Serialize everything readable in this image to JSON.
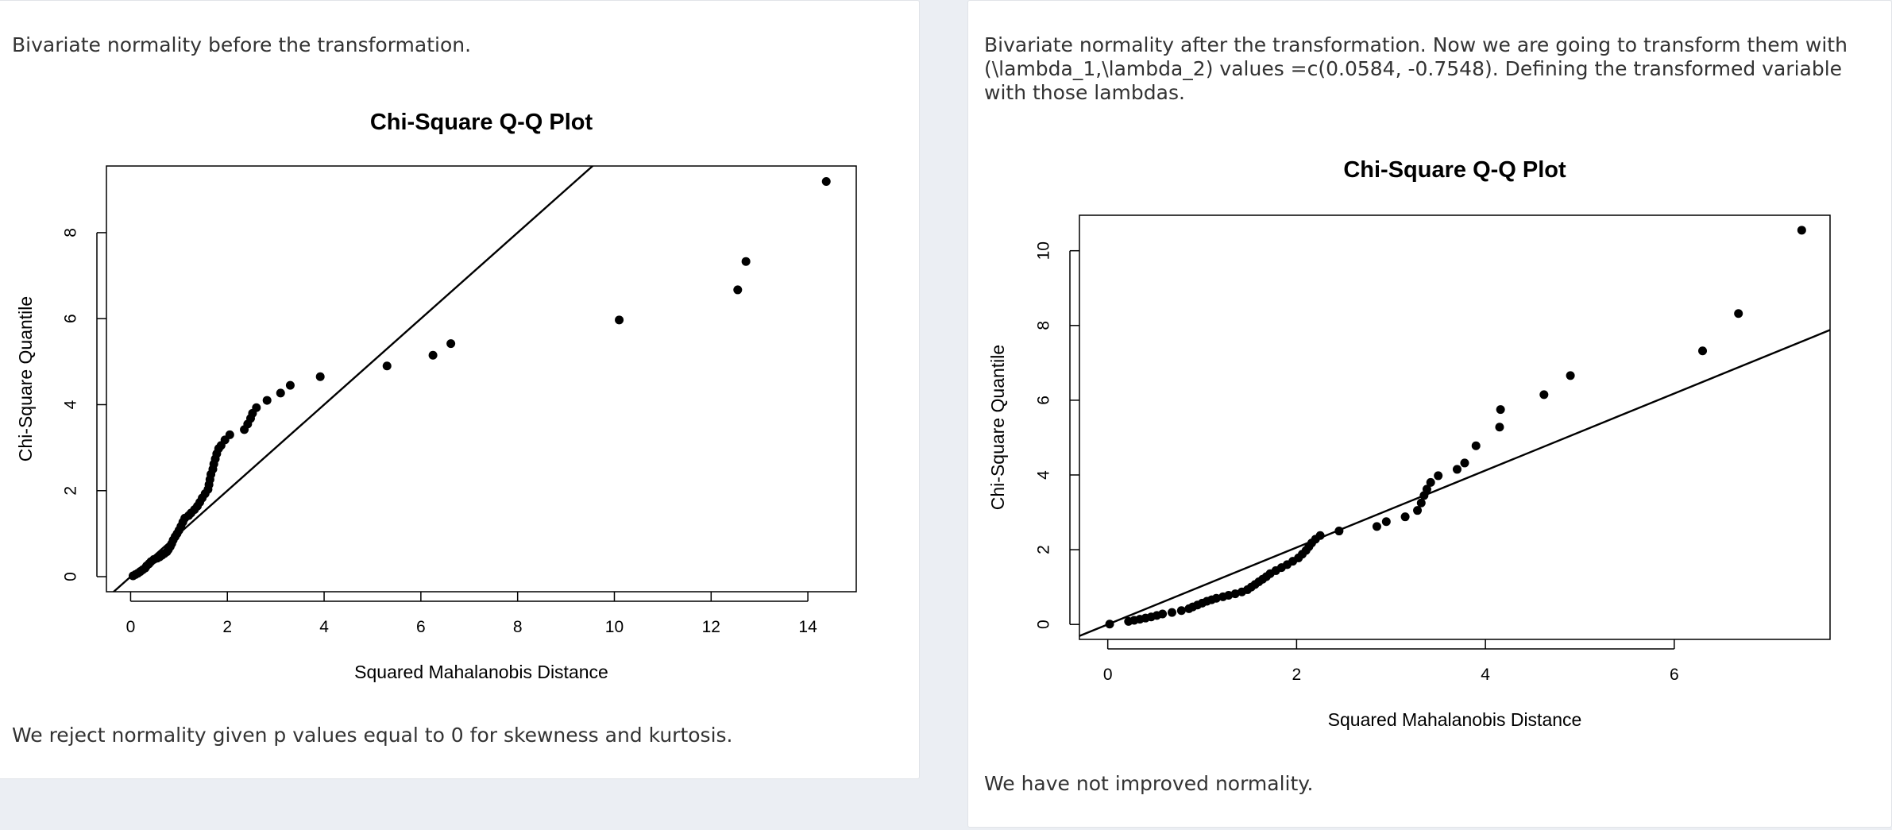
{
  "left_card": {
    "intro": "Bivariate normality before the transformation.",
    "conclusion": "We reject normality given p values equal to 0 for skewness and kurtosis."
  },
  "right_card": {
    "intro": "Bivariate normality after the transformation. Now we are going to transform them with (\\lambda_1,\\lambda_2) values =c(0.0584, -0.7548). Defining the transformed variable with those lambdas.",
    "conclusion": "We have not improved normality."
  },
  "chart_data": [
    {
      "type": "scatter",
      "title": "Chi-Square Q-Q Plot",
      "xlabel": "Squared Mahalanobis Distance",
      "ylabel": "Chi-Square Quantile",
      "xlim": [
        -0.5,
        15
      ],
      "ylim": [
        -0.35,
        9.55
      ],
      "xticks": [
        0,
        2,
        4,
        6,
        8,
        10,
        12,
        14
      ],
      "yticks": [
        0,
        2,
        4,
        6,
        8
      ],
      "reference_line": {
        "intercept": 0,
        "slope": 1
      },
      "points": [
        [
          0.05,
          0.02
        ],
        [
          0.1,
          0.05
        ],
        [
          0.15,
          0.08
        ],
        [
          0.2,
          0.12
        ],
        [
          0.25,
          0.16
        ],
        [
          0.3,
          0.2
        ],
        [
          0.33,
          0.25
        ],
        [
          0.38,
          0.3
        ],
        [
          0.42,
          0.35
        ],
        [
          0.48,
          0.4
        ],
        [
          0.55,
          0.43
        ],
        [
          0.6,
          0.46
        ],
        [
          0.65,
          0.5
        ],
        [
          0.7,
          0.54
        ],
        [
          0.75,
          0.58
        ],
        [
          0.78,
          0.63
        ],
        [
          0.82,
          0.7
        ],
        [
          0.85,
          0.77
        ],
        [
          0.88,
          0.85
        ],
        [
          0.92,
          0.93
        ],
        [
          0.96,
          1.0
        ],
        [
          1.0,
          1.08
        ],
        [
          1.04,
          1.17
        ],
        [
          1.08,
          1.27
        ],
        [
          1.12,
          1.36
        ],
        [
          1.2,
          1.42
        ],
        [
          1.25,
          1.48
        ],
        [
          1.32,
          1.56
        ],
        [
          1.38,
          1.64
        ],
        [
          1.43,
          1.73
        ],
        [
          1.48,
          1.83
        ],
        [
          1.54,
          1.93
        ],
        [
          1.6,
          2.03
        ],
        [
          1.62,
          2.14
        ],
        [
          1.64,
          2.26
        ],
        [
          1.66,
          2.38
        ],
        [
          1.7,
          2.5
        ],
        [
          1.72,
          2.62
        ],
        [
          1.75,
          2.74
        ],
        [
          1.78,
          2.86
        ],
        [
          1.82,
          2.98
        ],
        [
          1.87,
          3.05
        ],
        [
          1.95,
          3.18
        ],
        [
          2.05,
          3.3
        ],
        [
          2.35,
          3.42
        ],
        [
          2.42,
          3.55
        ],
        [
          2.48,
          3.68
        ],
        [
          2.52,
          3.8
        ],
        [
          2.6,
          3.93
        ],
        [
          2.82,
          4.1
        ],
        [
          3.1,
          4.27
        ],
        [
          3.3,
          4.45
        ],
        [
          3.92,
          4.65
        ],
        [
          5.3,
          4.9
        ],
        [
          6.25,
          5.15
        ],
        [
          6.62,
          5.42
        ],
        [
          10.1,
          5.97
        ],
        [
          12.55,
          6.67
        ],
        [
          12.72,
          7.33
        ],
        [
          14.38,
          9.19
        ]
      ]
    },
    {
      "type": "scatter",
      "title": "Chi-Square Q-Q Plot",
      "xlabel": "Squared Mahalanobis Distance",
      "ylabel": "Chi-Square Quantile",
      "xlim": [
        -0.3,
        7.65
      ],
      "ylim": [
        -0.4,
        10.95
      ],
      "xticks": [
        0,
        2,
        4,
        6
      ],
      "yticks": [
        0,
        2,
        4,
        6,
        8,
        10
      ],
      "reference_line": {
        "intercept": 0,
        "slope": 1.03
      },
      "points": [
        [
          0.02,
          0.01
        ],
        [
          0.22,
          0.08
        ],
        [
          0.28,
          0.11
        ],
        [
          0.34,
          0.14
        ],
        [
          0.4,
          0.17
        ],
        [
          0.46,
          0.2
        ],
        [
          0.52,
          0.24
        ],
        [
          0.58,
          0.28
        ],
        [
          0.68,
          0.32
        ],
        [
          0.78,
          0.37
        ],
        [
          0.86,
          0.42
        ],
        [
          0.9,
          0.47
        ],
        [
          0.95,
          0.52
        ],
        [
          1.0,
          0.57
        ],
        [
          1.05,
          0.62
        ],
        [
          1.1,
          0.66
        ],
        [
          1.15,
          0.7
        ],
        [
          1.22,
          0.74
        ],
        [
          1.28,
          0.78
        ],
        [
          1.35,
          0.82
        ],
        [
          1.42,
          0.87
        ],
        [
          1.48,
          0.93
        ],
        [
          1.52,
          1.0
        ],
        [
          1.56,
          1.07
        ],
        [
          1.6,
          1.14
        ],
        [
          1.64,
          1.21
        ],
        [
          1.68,
          1.28
        ],
        [
          1.72,
          1.36
        ],
        [
          1.78,
          1.44
        ],
        [
          1.84,
          1.52
        ],
        [
          1.9,
          1.6
        ],
        [
          1.96,
          1.69
        ],
        [
          2.02,
          1.78
        ],
        [
          2.06,
          1.88
        ],
        [
          2.1,
          1.98
        ],
        [
          2.13,
          2.08
        ],
        [
          2.16,
          2.18
        ],
        [
          2.2,
          2.28
        ],
        [
          2.25,
          2.38
        ],
        [
          2.45,
          2.5
        ],
        [
          2.85,
          2.62
        ],
        [
          2.95,
          2.75
        ],
        [
          3.15,
          2.88
        ],
        [
          3.28,
          3.05
        ],
        [
          3.32,
          3.25
        ],
        [
          3.35,
          3.45
        ],
        [
          3.38,
          3.62
        ],
        [
          3.42,
          3.8
        ],
        [
          3.5,
          3.98
        ],
        [
          3.7,
          4.15
        ],
        [
          3.78,
          4.32
        ],
        [
          3.9,
          4.78
        ],
        [
          4.15,
          5.28
        ],
        [
          4.16,
          5.75
        ],
        [
          4.62,
          6.15
        ],
        [
          4.9,
          6.66
        ],
        [
          6.3,
          7.32
        ],
        [
          6.68,
          8.32
        ],
        [
          7.35,
          10.55
        ]
      ]
    }
  ]
}
